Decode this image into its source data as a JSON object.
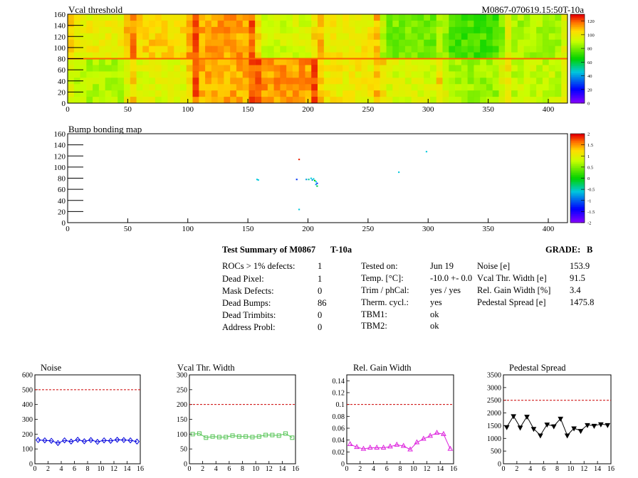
{
  "module_label": "M0867-070619.15:50T-10a",
  "maps": [
    {
      "title": "Vcal threshold",
      "x_ticks": [
        0,
        50,
        100,
        150,
        200,
        250,
        300,
        350,
        400
      ],
      "y_ticks": [
        0,
        20,
        40,
        60,
        80,
        100,
        120,
        140,
        160
      ],
      "xlim": [
        0,
        416
      ],
      "ylim": [
        0,
        160
      ],
      "colorbar_ticks": [
        "120",
        "100",
        "80",
        "60",
        "40",
        "20",
        "0"
      ],
      "colorbar_range": [
        0,
        130
      ]
    },
    {
      "title": "Bump bonding map",
      "x_ticks": [
        0,
        50,
        100,
        150,
        200,
        250,
        300,
        350,
        400
      ],
      "y_ticks": [
        0,
        20,
        40,
        60,
        80,
        100,
        120,
        140,
        160
      ],
      "xlim": [
        0,
        416
      ],
      "ylim": [
        0,
        160
      ],
      "colorbar_ticks": [
        "2",
        "1.5",
        "1",
        "0.5",
        "0",
        "-0.5",
        "-1",
        "-1.5",
        "-2"
      ],
      "colorbar_range": [
        -2,
        2
      ]
    }
  ],
  "summary": {
    "title": "Test Summary of M0867",
    "tag": "T-10a",
    "grade_label": "GRADE:",
    "grade_value": "B",
    "defects": [
      {
        "label": "ROCs > 1% defects:",
        "value": "1"
      },
      {
        "label": "Dead Pixel:",
        "value": "1"
      },
      {
        "label": "Mask Defects:",
        "value": "0"
      },
      {
        "label": "Dead Bumps:",
        "value": "86"
      },
      {
        "label": "Dead Trimbits:",
        "value": "0"
      },
      {
        "label": "Address Probl:",
        "value": "0"
      }
    ],
    "conditions": [
      {
        "label": "Tested on:",
        "value": "Jun 19"
      },
      {
        "label": "Temp. [°C]:",
        "value": "-10.0 +- 0.0"
      },
      {
        "label": "Trim / phCal:",
        "value": "yes / yes"
      },
      {
        "label": "Therm. cycl.:",
        "value": "yes"
      },
      {
        "label": "TBM1:",
        "value": "ok"
      },
      {
        "label": "TBM2:",
        "value": "ok"
      }
    ],
    "results": [
      {
        "label": "Noise [e]",
        "value": "153.9"
      },
      {
        "label": "Vcal Thr. Width [e]",
        "value": "91.5"
      },
      {
        "label": "Rel. Gain Width [%]",
        "value": "3.4"
      },
      {
        "label": "Pedestal Spread [e]",
        "value": "1475.8"
      }
    ]
  },
  "chart_data": [
    {
      "type": "line",
      "title": "Noise",
      "x": [
        0,
        1,
        2,
        3,
        4,
        5,
        6,
        7,
        8,
        9,
        10,
        11,
        12,
        13,
        14,
        15
      ],
      "values": [
        160,
        158,
        155,
        140,
        158,
        150,
        162,
        152,
        160,
        148,
        158,
        155,
        162,
        160,
        158,
        150
      ],
      "ylim": [
        0,
        600
      ],
      "y_ticks": [
        0,
        100,
        200,
        300,
        400,
        500,
        600
      ],
      "x_ticks": [
        0,
        2,
        4,
        6,
        8,
        10,
        12,
        14,
        16
      ],
      "limit": 500,
      "color": "#0000dd",
      "marker": "diamond"
    },
    {
      "type": "line",
      "title": "Vcal Thr. Width",
      "x": [
        0,
        1,
        2,
        3,
        4,
        5,
        6,
        7,
        8,
        9,
        10,
        11,
        12,
        13,
        14,
        15
      ],
      "values": [
        100,
        102,
        88,
        92,
        90,
        90,
        95,
        92,
        92,
        90,
        92,
        97,
        97,
        95,
        102,
        88
      ],
      "ylim": [
        0,
        300
      ],
      "y_ticks": [
        0,
        50,
        100,
        150,
        200,
        250,
        300
      ],
      "x_ticks": [
        0,
        2,
        4,
        6,
        8,
        10,
        12,
        14,
        16
      ],
      "limit": 200,
      "color": "#55c455",
      "marker": "square"
    },
    {
      "type": "line",
      "title": "Rel. Gain Width",
      "x": [
        0,
        1,
        2,
        3,
        4,
        5,
        6,
        7,
        8,
        9,
        10,
        11,
        12,
        13,
        14,
        15
      ],
      "values": [
        0.033,
        0.028,
        0.025,
        0.027,
        0.027,
        0.027,
        0.029,
        0.032,
        0.03,
        0.024,
        0.036,
        0.042,
        0.047,
        0.052,
        0.05,
        0.025
      ],
      "ylim": [
        0,
        0.15
      ],
      "y_ticks": [
        0,
        0.02,
        0.04,
        0.06,
        0.08,
        0.1,
        0.12,
        0.14
      ],
      "x_ticks": [
        0,
        2,
        4,
        6,
        8,
        10,
        12,
        14,
        16
      ],
      "limit": 0.1,
      "color": "#dd22dd",
      "marker": "triangle"
    },
    {
      "type": "line",
      "title": "Pedestal Spread",
      "x": [
        0,
        1,
        2,
        3,
        4,
        5,
        6,
        7,
        8,
        9,
        10,
        11,
        12,
        13,
        14,
        15
      ],
      "values": [
        1450,
        1880,
        1430,
        1860,
        1380,
        1120,
        1550,
        1480,
        1780,
        1120,
        1400,
        1300,
        1530,
        1500,
        1560,
        1530
      ],
      "ylim": [
        0,
        3500
      ],
      "y_ticks": [
        0,
        500,
        1000,
        1500,
        2000,
        2500,
        3000,
        3500
      ],
      "x_ticks": [
        0,
        2,
        4,
        6,
        8,
        10,
        12,
        14,
        16
      ],
      "limit": 2500,
      "color": "#000000",
      "marker": "triangle-down"
    }
  ]
}
